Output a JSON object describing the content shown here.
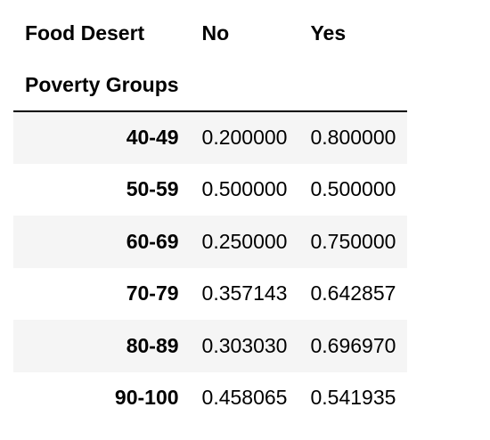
{
  "table": {
    "column_header_label": "Food Desert",
    "columns": [
      "No",
      "Yes"
    ],
    "index_name": "Poverty Groups",
    "rows": [
      {
        "label": "40-49",
        "values": [
          "0.200000",
          "0.800000"
        ]
      },
      {
        "label": "50-59",
        "values": [
          "0.500000",
          "0.500000"
        ]
      },
      {
        "label": "60-69",
        "values": [
          "0.250000",
          "0.750000"
        ]
      },
      {
        "label": "70-79",
        "values": [
          "0.357143",
          "0.642857"
        ]
      },
      {
        "label": "80-89",
        "values": [
          "0.303030",
          "0.696970"
        ]
      },
      {
        "label": "90-100",
        "values": [
          "0.458065",
          "0.541935"
        ]
      }
    ]
  },
  "colors": {
    "stripe": "#f5f5f5",
    "header_rule": "#000000",
    "text": "#000000"
  }
}
